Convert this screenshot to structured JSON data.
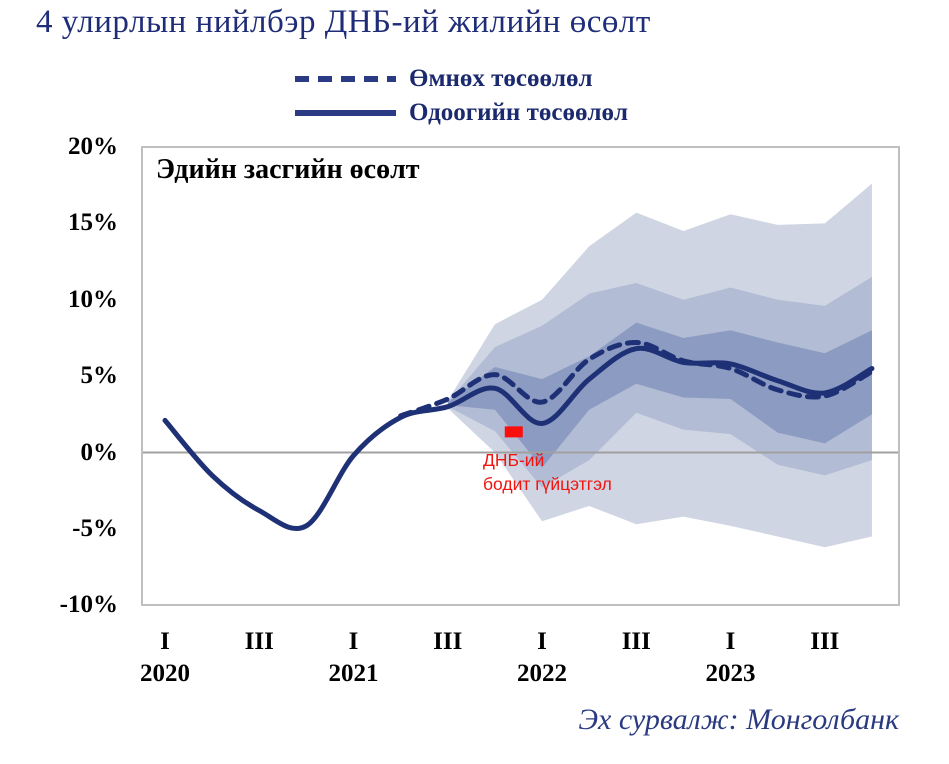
{
  "title": "4 улирлын нийлбэр ДНБ-ий жилийн өсөлт",
  "legend": {
    "previous_label": "Өмнөх төсөөлөл",
    "current_label": "Одоогийн төсөөлөл"
  },
  "chart_data": {
    "type": "line",
    "title": "Эдийн засгийн өсөлт",
    "source_note": "Эх сурвалж:  Монголбанк",
    "xlabel": "",
    "ylabel": "",
    "ylim": [
      -10,
      20
    ],
    "grid": "zero-line-only",
    "legend_position": "top-center",
    "y_ticks": [
      {
        "value": 20,
        "label": "20%"
      },
      {
        "value": 15,
        "label": "15%"
      },
      {
        "value": 10,
        "label": "10%"
      },
      {
        "value": 5,
        "label": "5%"
      },
      {
        "value": 0,
        "label": "0%"
      },
      {
        "value": -5,
        "label": "-5%"
      },
      {
        "value": -10,
        "label": "-10%"
      }
    ],
    "x_ticks": [
      {
        "quarter_index": 0,
        "label": "I",
        "year": "2020"
      },
      {
        "quarter_index": 2,
        "label": "III",
        "year": ""
      },
      {
        "quarter_index": 4,
        "label": "I",
        "year": "2021"
      },
      {
        "quarter_index": 6,
        "label": "III",
        "year": ""
      },
      {
        "quarter_index": 8,
        "label": "I",
        "year": "2022"
      },
      {
        "quarter_index": 10,
        "label": "III",
        "year": ""
      },
      {
        "quarter_index": 12,
        "label": "I",
        "year": "2023"
      },
      {
        "quarter_index": 14,
        "label": "III",
        "year": ""
      }
    ],
    "categories": [
      "2020Q1",
      "2020Q2",
      "2020Q3",
      "2020Q4",
      "2021Q1",
      "2021Q2",
      "2021Q3",
      "2021Q4",
      "2022Q1",
      "2022Q2",
      "2022Q3",
      "2022Q4",
      "2023Q1",
      "2023Q2",
      "2023Q3",
      "2023Q4"
    ],
    "series": [
      {
        "name": "Одоогийн төсөөлөл",
        "style": "solid",
        "start_index": 0,
        "values": [
          2.1,
          -1.5,
          -3.8,
          -4.8,
          -0.2,
          2.3,
          3.0,
          4.2,
          1.9,
          4.8,
          6.8,
          5.9,
          5.8,
          4.7,
          3.9,
          5.5
        ]
      },
      {
        "name": "Өмнөх төсөөлөл",
        "style": "dashed",
        "start_index": 5,
        "values": [
          2.4,
          3.5,
          5.1,
          3.3,
          6.1,
          7.2,
          6.0,
          5.5,
          4.1,
          3.7,
          5.3
        ]
      }
    ],
    "fan_bands": {
      "start_index": 6,
      "outer_top": [
        3.4,
        8.4,
        10.0,
        13.5,
        15.7,
        14.5,
        15.6,
        14.9,
        15.0,
        17.6
      ],
      "middle_top": [
        3.3,
        6.9,
        8.3,
        10.4,
        11.1,
        10.0,
        10.8,
        10.0,
        9.6,
        11.5
      ],
      "inner_top": [
        3.3,
        5.6,
        4.8,
        6.3,
        8.5,
        7.5,
        8.0,
        7.2,
        6.5,
        8.0
      ],
      "inner_bottom": [
        3.1,
        2.8,
        -1.0,
        2.8,
        4.5,
        3.6,
        3.5,
        1.3,
        0.6,
        2.5
      ],
      "middle_bottom": [
        3.0,
        1.4,
        -2.3,
        -0.5,
        2.6,
        1.5,
        1.2,
        -0.8,
        -1.5,
        -0.5
      ],
      "outer_bottom": [
        2.9,
        0.0,
        -4.5,
        -3.5,
        -4.7,
        -4.2,
        -4.8,
        -5.5,
        -6.2,
        -5.5
      ]
    },
    "marker": {
      "quarter": "2021Q4",
      "quarter_index": 7.4,
      "value": 1.35,
      "label_line1": "ДНБ-ий",
      "label_line2": "бодит гүйцэтгэл"
    },
    "colors": {
      "line": "#1f3176",
      "legend_line": "#2a3a85",
      "band_inner": "#8c9bc1",
      "band_middle": "#b2bcd4",
      "band_outer": "#cfd5e3",
      "marker": "#fa0f0c",
      "marker_text": "#f2150f",
      "zero_line": "#a0a0a0",
      "plot_border": "#bfbfbf",
      "title_text": "#1f2d78",
      "legend_text": "#1b2a6e",
      "source_text": "#2a3a80"
    }
  }
}
